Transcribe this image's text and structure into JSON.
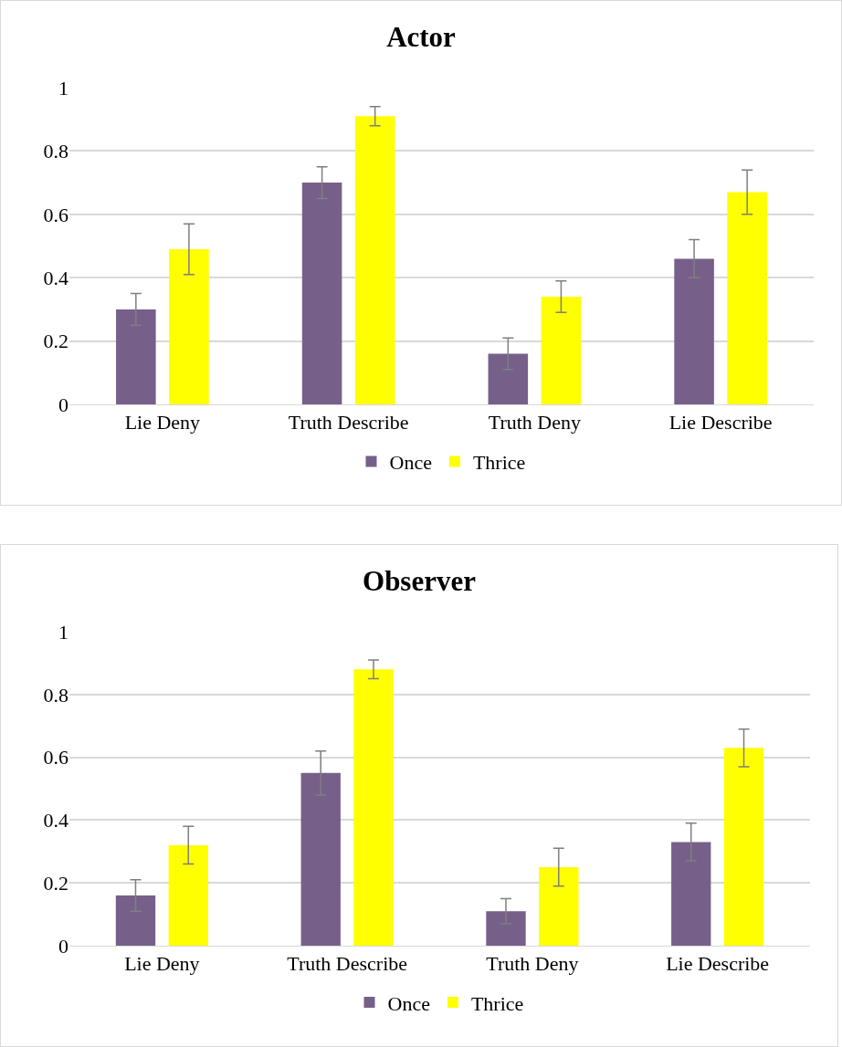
{
  "chart_data": [
    {
      "type": "bar",
      "title": "Actor",
      "categories": [
        "Lie Deny",
        "Truth Describe",
        "Truth Deny",
        "Lie Describe"
      ],
      "ylim": [
        0,
        1
      ],
      "yticks": [
        0,
        0.2,
        0.4,
        0.6,
        0.8,
        1
      ],
      "grid": "y",
      "legend": "bottom",
      "series": [
        {
          "name": "Once",
          "color": "#76608a",
          "values": [
            0.3,
            0.7,
            0.16,
            0.46
          ],
          "errors": [
            0.05,
            0.05,
            0.05,
            0.06
          ]
        },
        {
          "name": "Thrice",
          "color": "#ffff00",
          "values": [
            0.49,
            0.91,
            0.34,
            0.67
          ],
          "errors": [
            0.08,
            0.03,
            0.05,
            0.07
          ]
        }
      ]
    },
    {
      "type": "bar",
      "title": "Observer",
      "categories": [
        "Lie Deny",
        "Truth Describe",
        "Truth Deny",
        "Lie Describe"
      ],
      "ylim": [
        0,
        1
      ],
      "yticks": [
        0,
        0.2,
        0.4,
        0.6,
        0.8,
        1
      ],
      "grid": "y",
      "legend": "bottom",
      "series": [
        {
          "name": "Once",
          "color": "#76608a",
          "values": [
            0.16,
            0.55,
            0.11,
            0.33
          ],
          "errors": [
            0.05,
            0.07,
            0.04,
            0.06
          ]
        },
        {
          "name": "Thrice",
          "color": "#ffff00",
          "values": [
            0.32,
            0.88,
            0.25,
            0.63
          ],
          "errors": [
            0.06,
            0.03,
            0.06,
            0.06
          ]
        }
      ]
    }
  ]
}
